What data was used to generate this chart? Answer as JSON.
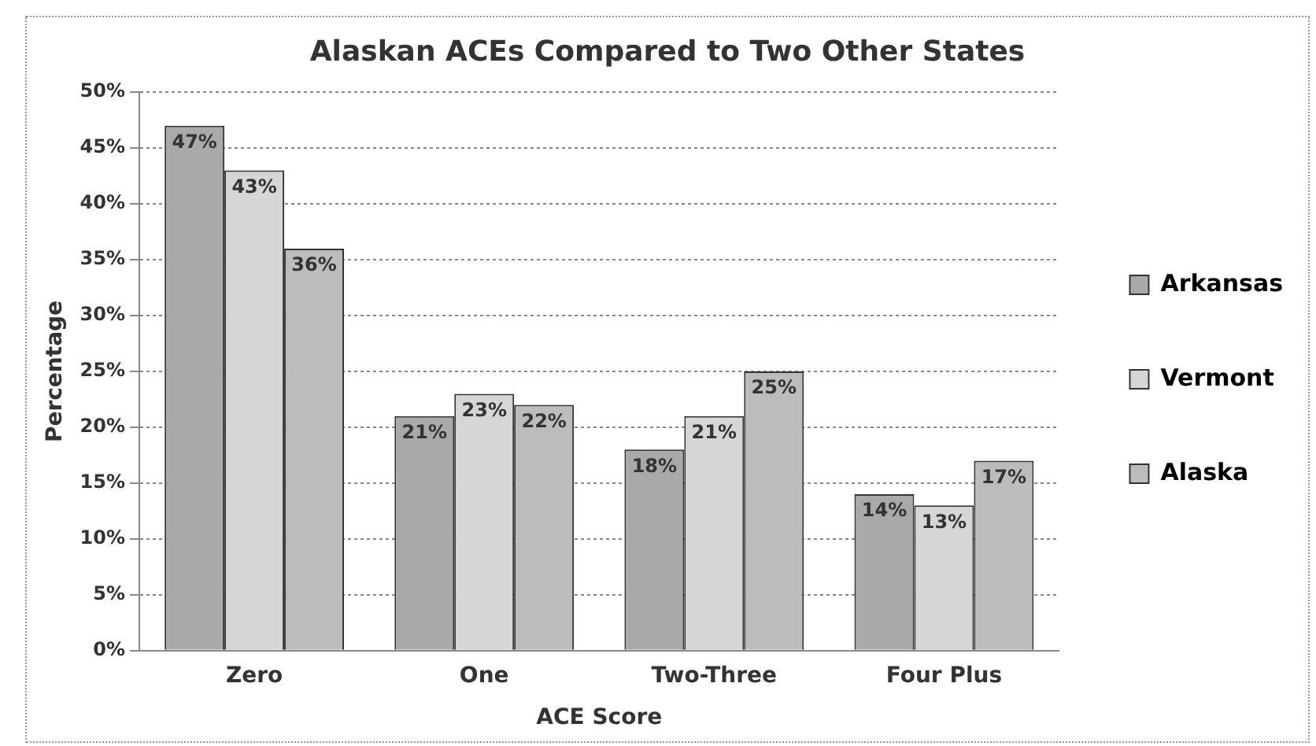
{
  "chart_data": {
    "type": "bar",
    "title": "Alaskan ACEs Compared to Two Other States",
    "xlabel": "ACE Score",
    "ylabel": "Percentage",
    "categories": [
      "Zero",
      "One",
      "Two-Three",
      "Four Plus"
    ],
    "series": [
      {
        "name": "Arkansas",
        "color": "#a9a9a9",
        "values": [
          47,
          21,
          18,
          14
        ],
        "value_labels": [
          "47%",
          "21%",
          "18%",
          "14%"
        ]
      },
      {
        "name": "Vermont",
        "color": "#d6d6d6",
        "values": [
          43,
          23,
          21,
          13
        ],
        "value_labels": [
          "43%",
          "23%",
          "21%",
          "13%"
        ]
      },
      {
        "name": "Alaska",
        "color": "#bcbcbc",
        "values": [
          36,
          22,
          25,
          17
        ],
        "value_labels": [
          "36%",
          "22%",
          "25%",
          "17%"
        ]
      }
    ],
    "ylim": [
      0,
      50
    ],
    "yticks": [
      {
        "value": 0,
        "label": "0%"
      },
      {
        "value": 5,
        "label": "5%"
      },
      {
        "value": 10,
        "label": "10%"
      },
      {
        "value": 15,
        "label": "15%"
      },
      {
        "value": 20,
        "label": "20%"
      },
      {
        "value": 25,
        "label": "25%"
      },
      {
        "value": 30,
        "label": "30%"
      },
      {
        "value": 35,
        "label": "35%"
      },
      {
        "value": 40,
        "label": "40%"
      },
      {
        "value": 45,
        "label": "45%"
      },
      {
        "value": 50,
        "label": "50%"
      }
    ],
    "grid": "y",
    "legend": "right"
  }
}
